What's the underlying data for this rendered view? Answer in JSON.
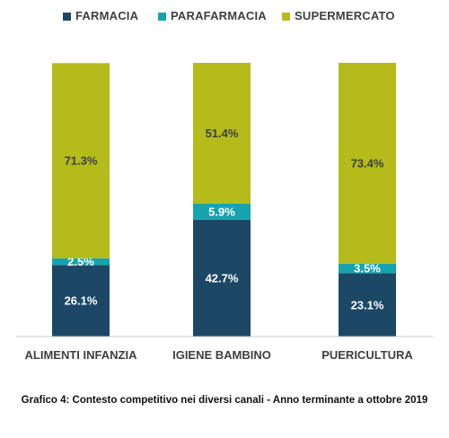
{
  "chart_data": {
    "type": "bar",
    "stacked": true,
    "percent": true,
    "categories": [
      "ALIMENTI INFANZIA",
      "IGIENE BAMBINO",
      "PUERICULTURA"
    ],
    "series": [
      {
        "name": "FARMACIA",
        "values": [
          26.1,
          42.7,
          23.1
        ],
        "color": "#1c4866",
        "labels": [
          "26.1%",
          "42.7%",
          "23.1%"
        ],
        "label_color": "#ffffff"
      },
      {
        "name": "PARAFARMACIA",
        "values": [
          2.5,
          5.9,
          3.5
        ],
        "color": "#17a3ad",
        "labels": [
          "2.5%",
          "5.9%",
          "3.5%"
        ],
        "label_color": "#ffffff"
      },
      {
        "name": "SUPERMERCATO",
        "values": [
          71.3,
          51.4,
          73.4
        ],
        "color": "#b4bb1b",
        "labels": [
          "71.3%",
          "51.4%",
          "73.4%"
        ],
        "label_color": "#3f3f3f"
      }
    ],
    "ylim": [
      0,
      100
    ],
    "grid": false,
    "legend_position": "top",
    "caption": "Grafico 4: Contesto competitivo nei diversi canali - Anno terminante a ottobre 2019"
  }
}
